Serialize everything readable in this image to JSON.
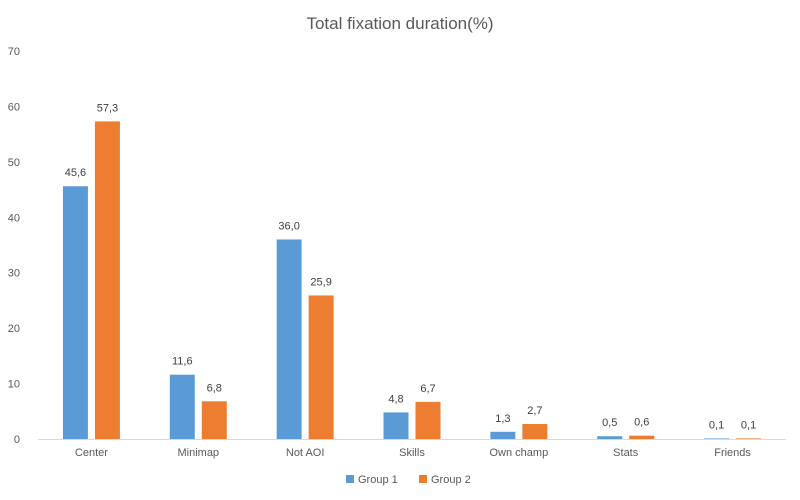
{
  "chart_data": {
    "type": "bar",
    "title": "Total fixation duration(%)",
    "xlabel": "",
    "ylabel": "",
    "categories": [
      "Center",
      "Minimap",
      "Not AOI",
      "Skills",
      "Own champ",
      "Stats",
      "Friends"
    ],
    "series": [
      {
        "name": "Group 1",
        "color": "#5b9bd5",
        "values": [
          45.6,
          11.6,
          36.0,
          4.8,
          1.3,
          0.5,
          0.1
        ],
        "labels": [
          "45,6",
          "11,6",
          "36,0",
          "4,8",
          "1,3",
          "0,5",
          "0,1"
        ]
      },
      {
        "name": "Group 2",
        "color": "#ed7d31",
        "values": [
          57.3,
          6.8,
          25.9,
          6.7,
          2.7,
          0.6,
          0.1
        ],
        "labels": [
          "57,3",
          "6,8",
          "25,9",
          "6,7",
          "2,7",
          "0,6",
          "0,1"
        ]
      }
    ],
    "ylim": [
      0,
      70
    ],
    "yticks": [
      0,
      10,
      20,
      30,
      40,
      50,
      60,
      70
    ],
    "grid": false,
    "legend": "bottom-center",
    "axis_color": "#d9d9d9"
  }
}
